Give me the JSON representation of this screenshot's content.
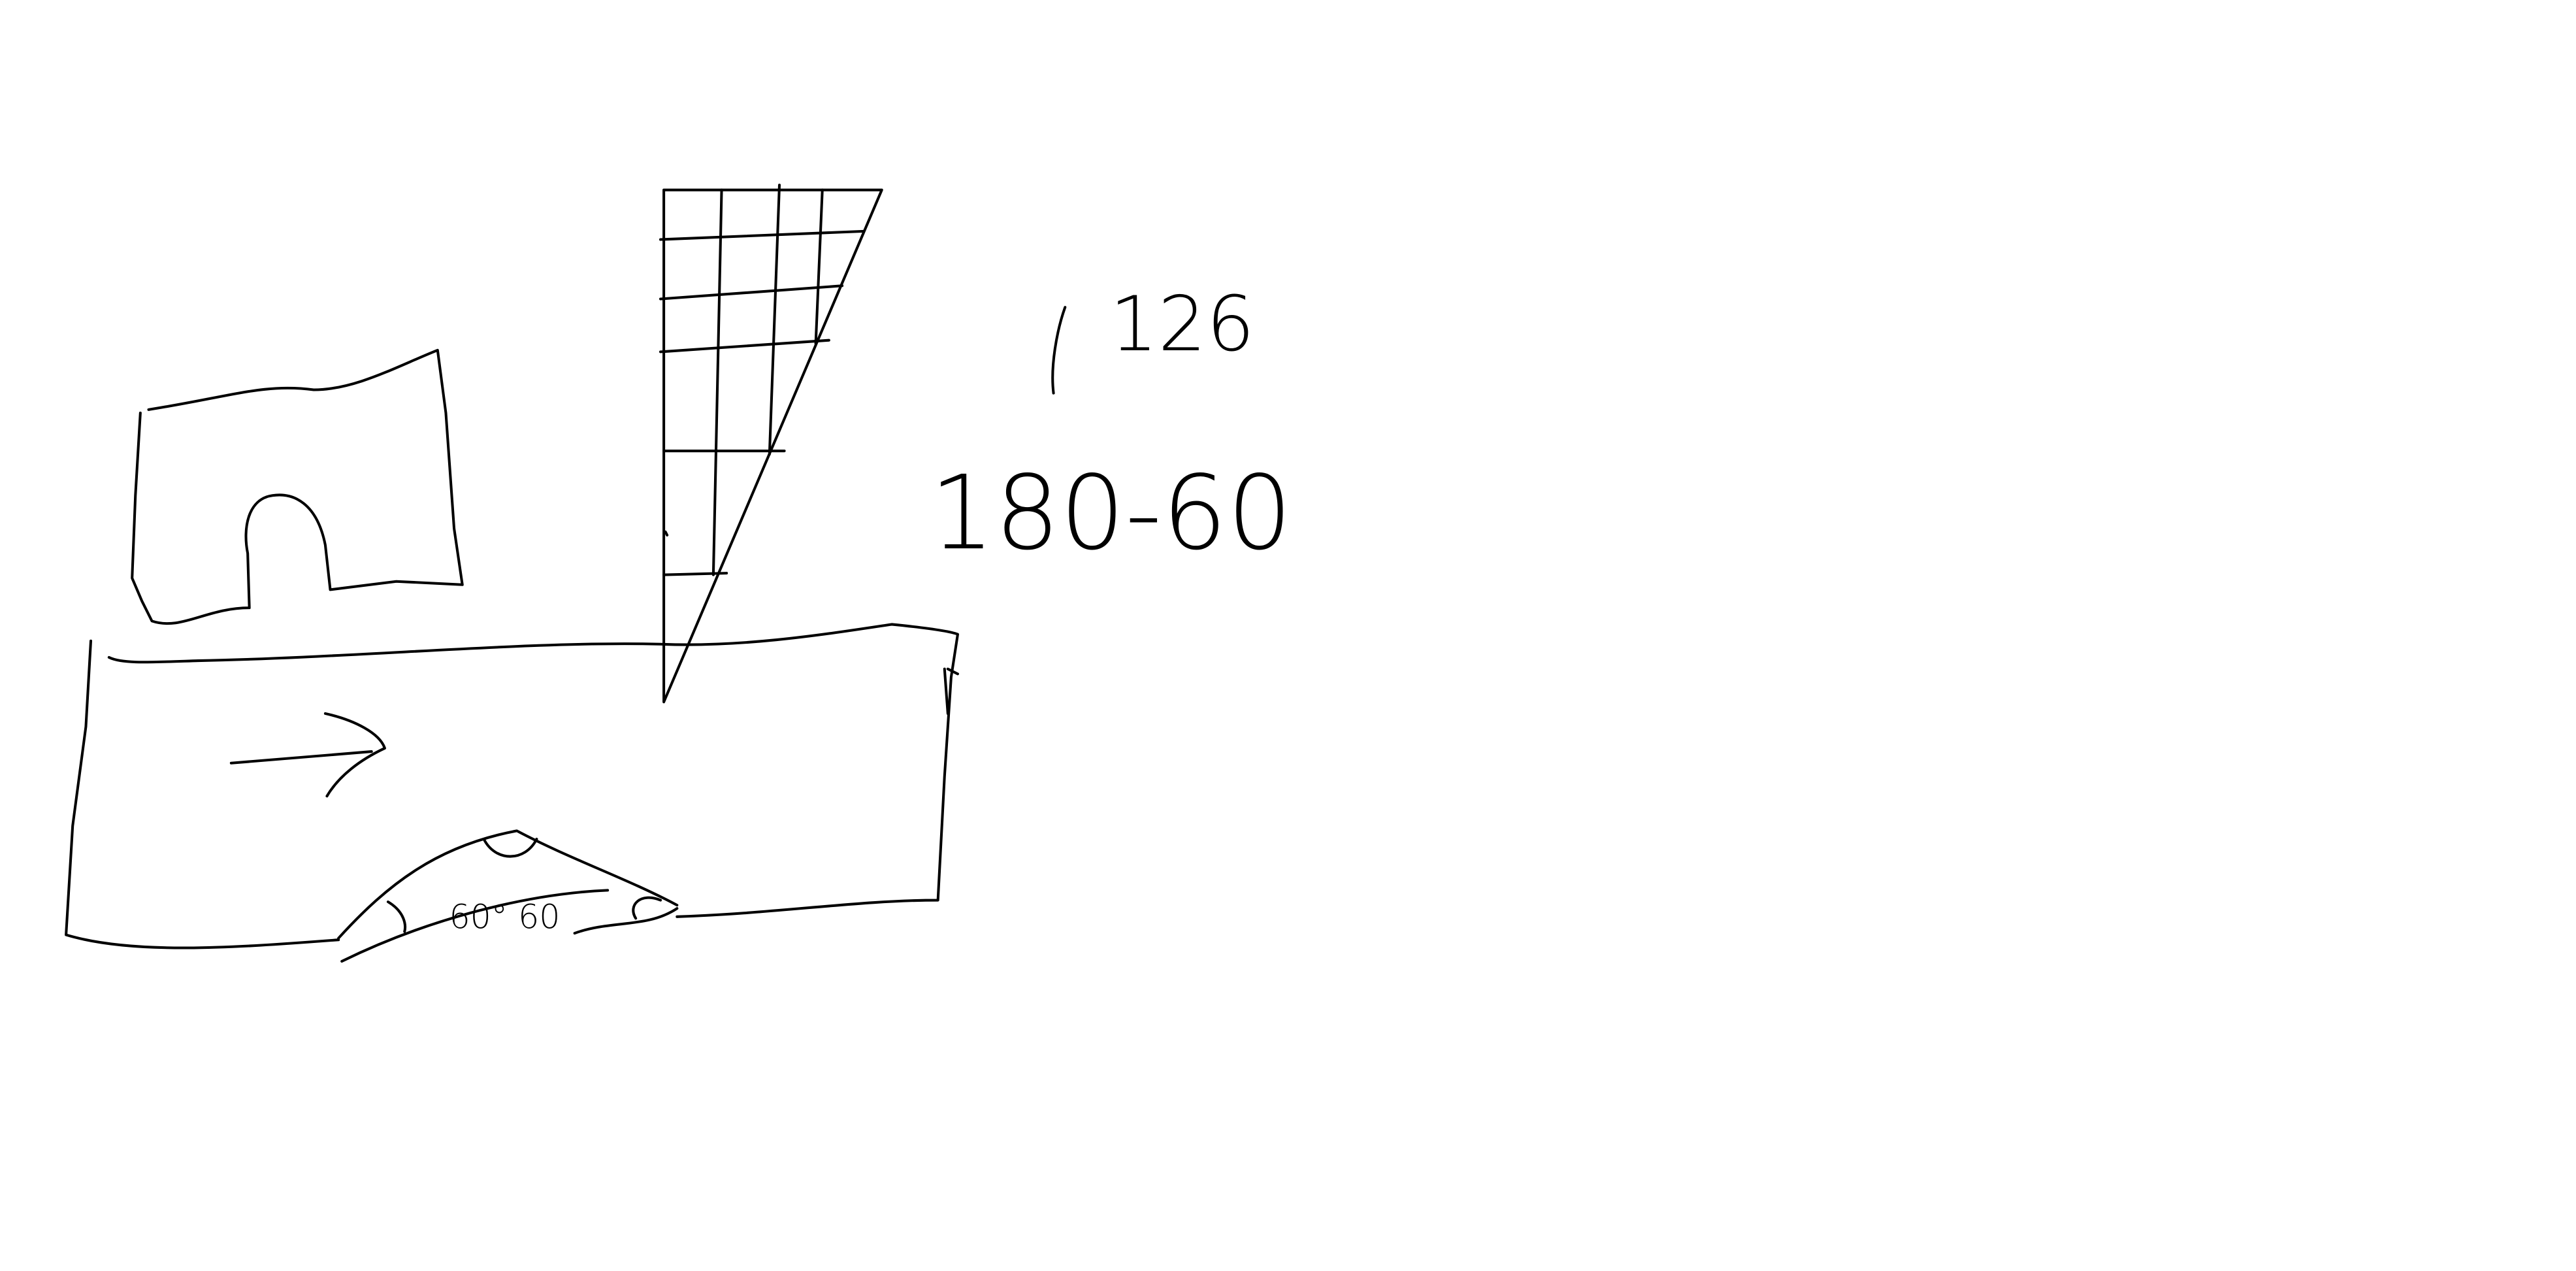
{
  "sketch": {
    "notes": [
      "126",
      "180-60",
      "60° 60"
    ]
  }
}
